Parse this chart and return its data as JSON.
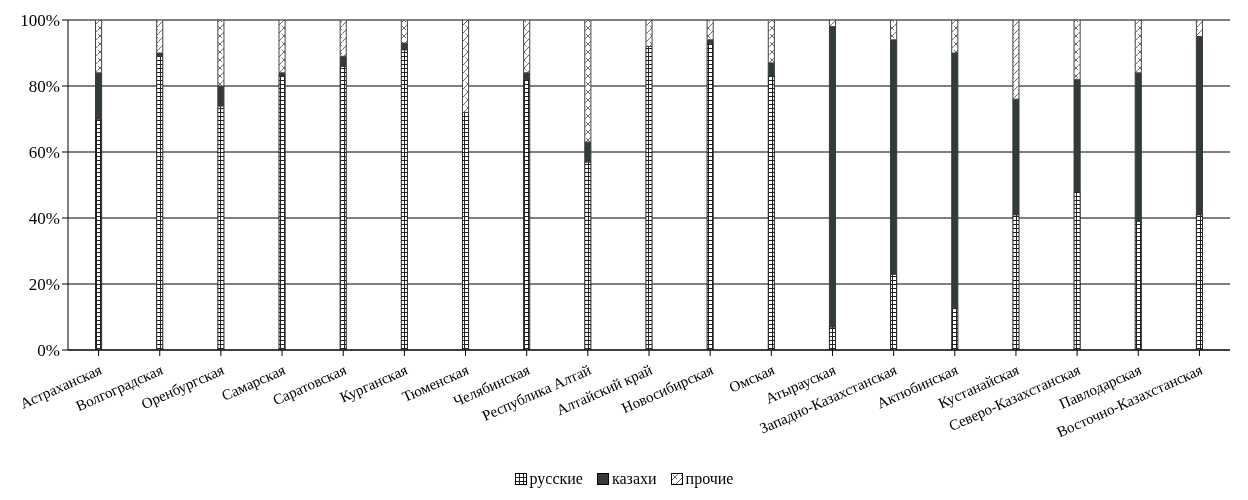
{
  "chart_data": {
    "type": "bar",
    "stacked": true,
    "categories": [
      "Астраханская",
      "Волгоградская",
      "Оренбургская",
      "Самарская",
      "Саратовская",
      "Курганская",
      "Тюменская",
      "Челябинская",
      "Республика Алтай",
      "Алтайский край",
      "Новосибирская",
      "Омская",
      "Атырауская",
      "Западно-Казахстанская",
      "Актюбинская",
      "Кустанайская",
      "Северо-Казахстанская",
      "Павлодарская",
      "Восточно-Казахстанская"
    ],
    "series": [
      {
        "name": "русские",
        "color": "#222222",
        "values": [
          70,
          89,
          74,
          83,
          86,
          91,
          72,
          82,
          57,
          92,
          93,
          83,
          7,
          23,
          13,
          41,
          48,
          39,
          41
        ]
      },
      {
        "name": "казахи",
        "color": "#333a3a",
        "values": [
          14,
          1,
          6,
          1,
          3,
          2,
          0,
          2,
          6,
          0,
          1,
          4,
          91,
          71,
          77,
          35,
          34,
          45,
          54
        ]
      },
      {
        "name": "прочие",
        "color": "#444444",
        "values": [
          16,
          10,
          20,
          16,
          11,
          7,
          28,
          16,
          37,
          8,
          6,
          13,
          2,
          6,
          10,
          24,
          18,
          16,
          5
        ]
      }
    ],
    "ylim": [
      0,
      100
    ],
    "yticks": [
      {
        "value": 0,
        "label": "0%"
      },
      {
        "value": 20,
        "label": "20%"
      },
      {
        "value": 40,
        "label": "40%"
      },
      {
        "value": 60,
        "label": "60%"
      },
      {
        "value": 80,
        "label": "80%"
      },
      {
        "value": 100,
        "label": "100%"
      }
    ],
    "grid": "y",
    "legend": "bottom"
  }
}
